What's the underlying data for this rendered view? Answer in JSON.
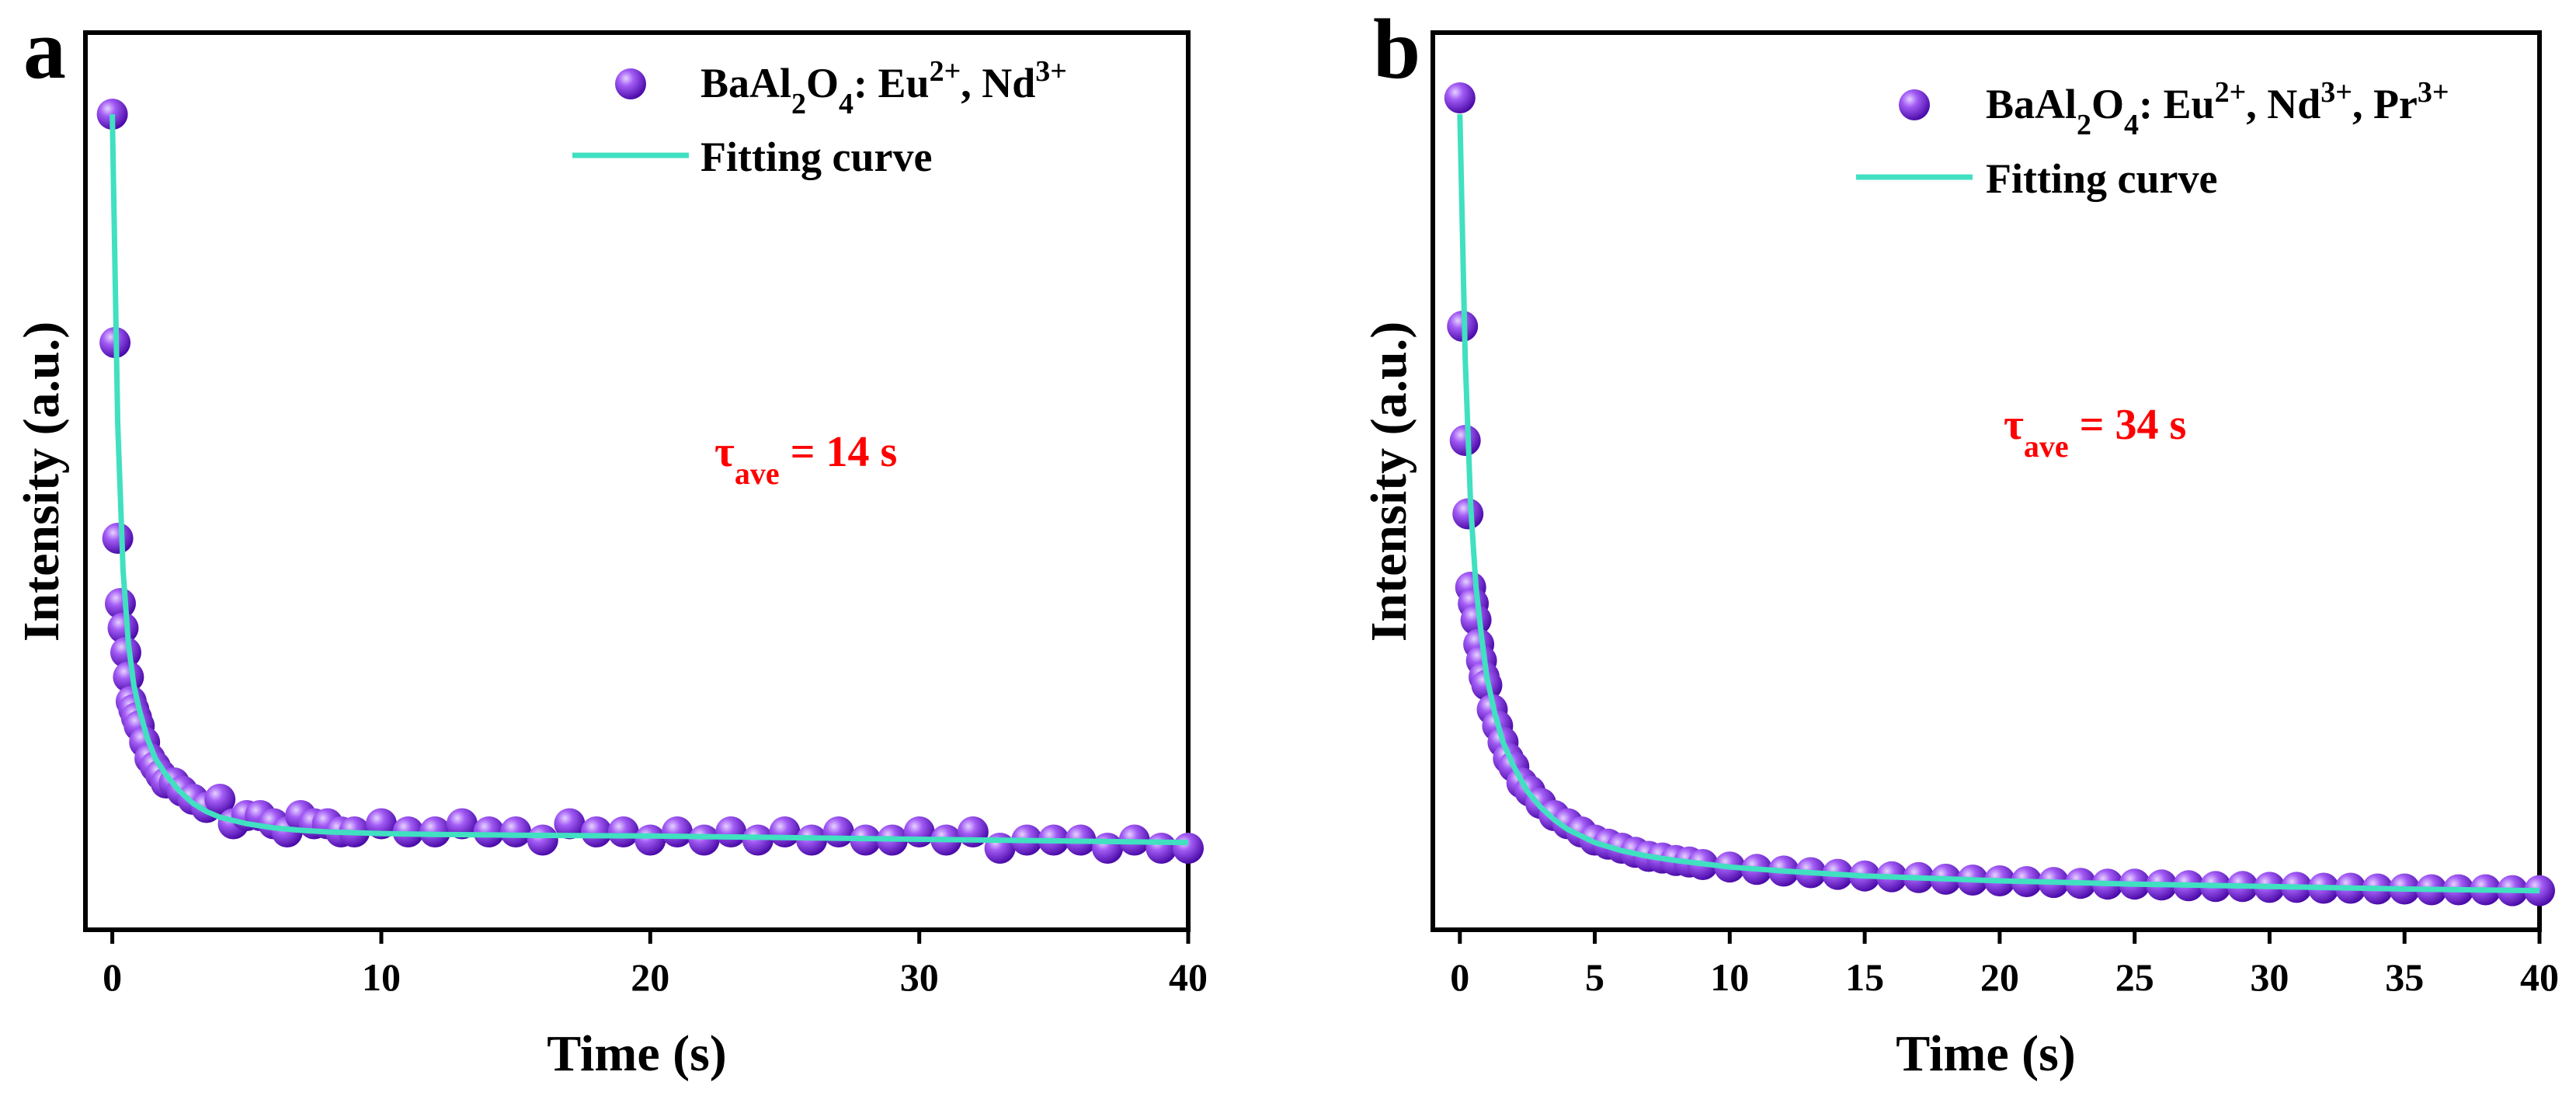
{
  "colors": {
    "marker": "#8a2be2",
    "marker_dark": "#5a10b8",
    "marker_light": "#c08cff",
    "fit": "#40e0c0",
    "annotation": "#ff0000"
  },
  "chart_data": [
    {
      "type": "scatter",
      "panel": "a",
      "xlabel": "Time (s)",
      "ylabel": "Intensity (a.u.)",
      "xlim": [
        -1,
        40
      ],
      "ylim": [
        0,
        1.1
      ],
      "xticks": [
        0,
        10,
        20,
        30,
        40
      ],
      "legend": {
        "position": "top-right",
        "series_label": {
          "base": "BaAl",
          "sub1": "2",
          "mid": "O",
          "sub2": "4",
          "after": ": Eu",
          "sup1": "2+",
          "sep1": ", Nd",
          "sup2": "3+",
          "sep2": "",
          "sup3": "",
          "tail": ""
        },
        "fit_label": "Fitting curve"
      },
      "annotation": {
        "symbol": "τ",
        "sub": "ave",
        "text": " = 14 s"
      },
      "series": [
        {
          "name": "BaAl2O4: Eu2+, Nd3+",
          "x": [
            0,
            0.1,
            0.2,
            0.3,
            0.4,
            0.5,
            0.6,
            0.7,
            0.8,
            0.9,
            1.0,
            1.2,
            1.4,
            1.6,
            1.8,
            2.0,
            2.3,
            2.6,
            3.0,
            3.5,
            4.0,
            4.5,
            5.0,
            5.5,
            6.0,
            6.5,
            7.0,
            7.5,
            8.0,
            8.5,
            9.0,
            10,
            11,
            12,
            13,
            14,
            15,
            16,
            17,
            18,
            19,
            20,
            21,
            22,
            23,
            24,
            25,
            26,
            27,
            28,
            29,
            30,
            31,
            32,
            33,
            34,
            35,
            36,
            37,
            38,
            39,
            40
          ],
          "y": [
            1.0,
            0.72,
            0.48,
            0.4,
            0.37,
            0.34,
            0.31,
            0.28,
            0.27,
            0.26,
            0.25,
            0.23,
            0.21,
            0.2,
            0.19,
            0.18,
            0.18,
            0.17,
            0.16,
            0.15,
            0.16,
            0.13,
            0.14,
            0.14,
            0.13,
            0.12,
            0.14,
            0.13,
            0.13,
            0.12,
            0.12,
            0.13,
            0.12,
            0.12,
            0.13,
            0.12,
            0.12,
            0.11,
            0.13,
            0.12,
            0.12,
            0.11,
            0.12,
            0.11,
            0.12,
            0.11,
            0.12,
            0.11,
            0.12,
            0.11,
            0.11,
            0.12,
            0.11,
            0.12,
            0.1,
            0.11,
            0.11,
            0.11,
            0.1,
            0.11,
            0.1,
            0.1
          ]
        }
      ],
      "fit": {
        "x": [
          0,
          0.2,
          0.4,
          0.6,
          0.8,
          1.0,
          1.3,
          1.6,
          2.0,
          2.5,
          3.0,
          3.5,
          4.0,
          5.0,
          6.0,
          7.0,
          8.0,
          10,
          12,
          15,
          20,
          25,
          30,
          35,
          40
        ],
        "y": [
          1.0,
          0.62,
          0.44,
          0.35,
          0.3,
          0.27,
          0.235,
          0.21,
          0.19,
          0.17,
          0.155,
          0.145,
          0.138,
          0.13,
          0.125,
          0.122,
          0.12,
          0.118,
          0.117,
          0.116,
          0.115,
          0.113,
          0.111,
          0.109,
          0.107
        ]
      }
    },
    {
      "type": "scatter",
      "panel": "b",
      "xlabel": "Time (s)",
      "ylabel": "Intensity (a.u.)",
      "xlim": [
        -1,
        40
      ],
      "ylim": [
        0,
        1.1
      ],
      "xticks": [
        0,
        5,
        10,
        15,
        20,
        25,
        30,
        35,
        40
      ],
      "legend": {
        "position": "top-right",
        "series_label": {
          "base": "BaAl",
          "sub1": "2",
          "mid": "O",
          "sub2": "4",
          "after": ": Eu",
          "sup1": "2+",
          "sep1": ", Nd",
          "sup2": "3+",
          "sep2": ", Pr",
          "sup3": "3+",
          "tail": ""
        },
        "fit_label": "Fitting curve"
      },
      "annotation": {
        "symbol": "τ",
        "sub": "ave",
        "text": " = 34 s"
      },
      "series": [
        {
          "name": "BaAl2O4: Eu2+, Nd3+, Pr3+",
          "x": [
            0,
            0.1,
            0.2,
            0.3,
            0.4,
            0.5,
            0.6,
            0.7,
            0.8,
            0.9,
            1.0,
            1.2,
            1.4,
            1.6,
            1.8,
            2.0,
            2.3,
            2.6,
            3.0,
            3.5,
            4.0,
            4.5,
            5.0,
            5.5,
            6.0,
            6.5,
            7.0,
            7.5,
            8.0,
            8.5,
            9.0,
            10,
            11,
            12,
            13,
            14,
            15,
            16,
            17,
            18,
            19,
            20,
            21,
            22,
            23,
            24,
            25,
            26,
            27,
            28,
            29,
            30,
            31,
            32,
            33,
            34,
            35,
            36,
            37,
            38,
            39,
            40
          ],
          "y": [
            1.02,
            0.74,
            0.6,
            0.51,
            0.42,
            0.4,
            0.38,
            0.35,
            0.33,
            0.31,
            0.3,
            0.27,
            0.25,
            0.23,
            0.21,
            0.2,
            0.18,
            0.17,
            0.155,
            0.14,
            0.13,
            0.12,
            0.11,
            0.105,
            0.1,
            0.095,
            0.09,
            0.088,
            0.085,
            0.083,
            0.08,
            0.077,
            0.074,
            0.072,
            0.07,
            0.068,
            0.066,
            0.065,
            0.064,
            0.062,
            0.061,
            0.06,
            0.059,
            0.058,
            0.057,
            0.056,
            0.056,
            0.055,
            0.054,
            0.053,
            0.053,
            0.052,
            0.052,
            0.051,
            0.051,
            0.05,
            0.05,
            0.049,
            0.049,
            0.049,
            0.048,
            0.048
          ]
        }
      ],
      "fit": {
        "x": [
          0,
          0.2,
          0.4,
          0.6,
          0.8,
          1.0,
          1.3,
          1.6,
          2.0,
          2.5,
          3.0,
          3.5,
          4.0,
          5.0,
          6.0,
          7.0,
          8.0,
          10,
          12,
          15,
          20,
          25,
          30,
          35,
          40
        ],
        "y": [
          1.0,
          0.7,
          0.52,
          0.42,
          0.36,
          0.31,
          0.265,
          0.23,
          0.2,
          0.17,
          0.15,
          0.135,
          0.123,
          0.107,
          0.097,
          0.09,
          0.085,
          0.077,
          0.072,
          0.066,
          0.06,
          0.056,
          0.053,
          0.05,
          0.048
        ]
      }
    }
  ]
}
